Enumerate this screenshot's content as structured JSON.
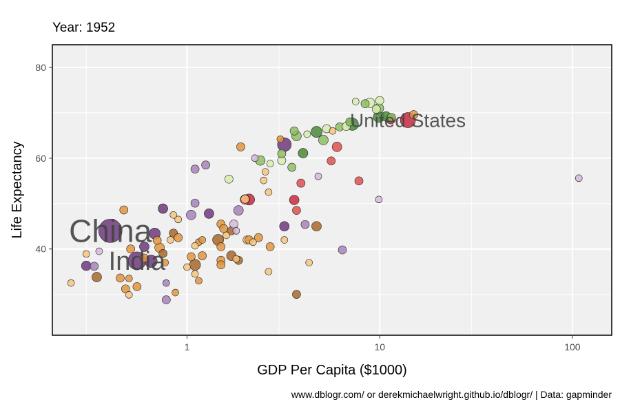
{
  "chart_data": {
    "type": "scatter",
    "title": "Year: 1952",
    "xlabel": "GDP Per Capita ($1000)",
    "ylabel": "Life Expectancy",
    "xscale": "log",
    "xlim": [
      0.2,
      160
    ],
    "ylim": [
      21,
      85
    ],
    "xticks": [
      {
        "value": 1,
        "label": "1"
      },
      {
        "value": 10,
        "label": "10"
      },
      {
        "value": 100,
        "label": "100"
      }
    ],
    "yticks": [
      {
        "value": 40,
        "label": "40"
      },
      {
        "value": 60,
        "label": "60"
      },
      {
        "value": 80,
        "label": "80"
      }
    ],
    "grid": true,
    "legend": "none",
    "caption": "www.dblogr.com/ or derekmichaelwright.github.io/dblogr/ | Data: gapminder",
    "colors": {
      "panel": "#f0f0f0",
      "grid": "#ffffff",
      "label": "#444444",
      "africa_light": "#f6c47e",
      "africa_mid": "#e0953f",
      "africa_dark": "#a8672a",
      "asia_light": "#d5b8dc",
      "asia_mid": "#a883b8",
      "asia_dark": "#6e3a7e",
      "americas_light": "#f08a6e",
      "americas_mid": "#e05050",
      "americas_dark": "#c72a40",
      "europe_light": "#d8ecb0",
      "europe_mid": "#8ebf62",
      "europe_dark": "#4a8a3a"
    },
    "labels": [
      {
        "text": "China",
        "x": 0.4,
        "y": 44.0,
        "size": 46
      },
      {
        "text": "India",
        "x": 0.55,
        "y": 37.4,
        "size": 38
      },
      {
        "text": "United States",
        "x": 14.0,
        "y": 68.4,
        "size": 28
      }
    ],
    "points": [
      {
        "x": 0.4,
        "y": 44.0,
        "r": 17,
        "c": "asia_dark"
      },
      {
        "x": 0.55,
        "y": 37.4,
        "r": 13,
        "c": "asia_dark"
      },
      {
        "x": 14.0,
        "y": 68.4,
        "r": 11,
        "c": "americas_dark"
      },
      {
        "x": 3.2,
        "y": 63.0,
        "r": 10,
        "c": "asia_dark"
      },
      {
        "x": 7.2,
        "y": 67.5,
        "r": 9,
        "c": "europe_dark"
      },
      {
        "x": 9.9,
        "y": 69.1,
        "r": 8,
        "c": "europe_dark"
      },
      {
        "x": 4.7,
        "y": 65.8,
        "r": 8,
        "c": "europe_dark"
      },
      {
        "x": 11.4,
        "y": 68.6,
        "r": 7,
        "c": "americas_dark"
      },
      {
        "x": 0.65,
        "y": 37.3,
        "r": 9,
        "c": "asia_dark"
      },
      {
        "x": 2.1,
        "y": 50.9,
        "r": 8,
        "c": "americas_dark"
      },
      {
        "x": 3.7,
        "y": 64.9,
        "r": 7,
        "c": "europe_mid"
      },
      {
        "x": 4.0,
        "y": 61.1,
        "r": 7,
        "c": "europe_dark"
      },
      {
        "x": 3.5,
        "y": 58.0,
        "r": 6,
        "c": "europe_mid"
      },
      {
        "x": 6.0,
        "y": 62.5,
        "r": 7,
        "c": "americas_mid"
      },
      {
        "x": 3.6,
        "y": 50.8,
        "r": 7,
        "c": "americas_dark"
      },
      {
        "x": 2.0,
        "y": 50.9,
        "r": 7,
        "c": "americas_mid"
      },
      {
        "x": 0.6,
        "y": 40.5,
        "r": 7,
        "c": "asia_dark"
      },
      {
        "x": 0.68,
        "y": 43.4,
        "r": 8,
        "c": "asia_dark"
      },
      {
        "x": 0.75,
        "y": 48.9,
        "r": 7,
        "c": "asia_dark"
      },
      {
        "x": 1.05,
        "y": 47.5,
        "r": 7,
        "c": "asia_mid"
      },
      {
        "x": 1.1,
        "y": 50.1,
        "r": 6,
        "c": "asia_mid"
      },
      {
        "x": 1.3,
        "y": 47.8,
        "r": 7,
        "c": "asia_dark"
      },
      {
        "x": 1.1,
        "y": 57.6,
        "r": 6,
        "c": "asia_mid"
      },
      {
        "x": 1.25,
        "y": 58.5,
        "r": 6,
        "c": "asia_mid"
      },
      {
        "x": 0.3,
        "y": 36.3,
        "r": 7,
        "c": "asia_dark"
      },
      {
        "x": 0.33,
        "y": 36.2,
        "r": 6,
        "c": "asia_mid"
      },
      {
        "x": 0.34,
        "y": 33.8,
        "r": 7,
        "c": "africa_dark"
      },
      {
        "x": 0.45,
        "y": 33.6,
        "r": 6,
        "c": "africa_mid"
      },
      {
        "x": 0.48,
        "y": 31.2,
        "r": 6,
        "c": "africa_mid"
      },
      {
        "x": 0.55,
        "y": 31.7,
        "r": 6,
        "c": "africa_mid"
      },
      {
        "x": 0.5,
        "y": 33.5,
        "r": 5,
        "c": "africa_mid"
      },
      {
        "x": 0.5,
        "y": 29.9,
        "r": 5,
        "c": "africa_light"
      },
      {
        "x": 0.25,
        "y": 32.5,
        "r": 5,
        "c": "africa_light"
      },
      {
        "x": 0.3,
        "y": 38.9,
        "r": 5,
        "c": "africa_light"
      },
      {
        "x": 0.35,
        "y": 39.5,
        "r": 5,
        "c": "asia_light"
      },
      {
        "x": 0.47,
        "y": 48.6,
        "r": 6,
        "c": "africa_mid"
      },
      {
        "x": 0.51,
        "y": 40.0,
        "r": 6,
        "c": "africa_mid"
      },
      {
        "x": 0.6,
        "y": 38.0,
        "r": 6,
        "c": "africa_mid"
      },
      {
        "x": 0.7,
        "y": 41.9,
        "r": 6,
        "c": "africa_mid"
      },
      {
        "x": 0.72,
        "y": 40.3,
        "r": 7,
        "c": "africa_mid"
      },
      {
        "x": 0.75,
        "y": 39.0,
        "r": 6,
        "c": "africa_dark"
      },
      {
        "x": 0.77,
        "y": 37.0,
        "r": 5,
        "c": "africa_mid"
      },
      {
        "x": 0.82,
        "y": 42.0,
        "r": 5,
        "c": "africa_light"
      },
      {
        "x": 0.85,
        "y": 43.5,
        "r": 6,
        "c": "africa_dark"
      },
      {
        "x": 0.9,
        "y": 42.5,
        "r": 6,
        "c": "africa_mid"
      },
      {
        "x": 0.9,
        "y": 46.5,
        "r": 5,
        "c": "africa_light"
      },
      {
        "x": 0.85,
        "y": 47.5,
        "r": 5,
        "c": "africa_light"
      },
      {
        "x": 0.78,
        "y": 32.5,
        "r": 5,
        "c": "asia_mid"
      },
      {
        "x": 0.78,
        "y": 28.8,
        "r": 6,
        "c": "asia_mid"
      },
      {
        "x": 0.87,
        "y": 30.4,
        "r": 5,
        "c": "africa_mid"
      },
      {
        "x": 1.05,
        "y": 38.3,
        "r": 6,
        "c": "africa_mid"
      },
      {
        "x": 1.15,
        "y": 41.5,
        "r": 5,
        "c": "africa_mid"
      },
      {
        "x": 1.2,
        "y": 38.5,
        "r": 6,
        "c": "africa_mid"
      },
      {
        "x": 1.1,
        "y": 36.5,
        "r": 8,
        "c": "africa_dark"
      },
      {
        "x": 1.15,
        "y": 33.0,
        "r": 5,
        "c": "africa_mid"
      },
      {
        "x": 1.1,
        "y": 34.5,
        "r": 5,
        "c": "africa_light"
      },
      {
        "x": 1.2,
        "y": 42.0,
        "r": 5,
        "c": "africa_mid"
      },
      {
        "x": 1.0,
        "y": 36.0,
        "r": 5,
        "c": "africa_light"
      },
      {
        "x": 1.1,
        "y": 40.7,
        "r": 5,
        "c": "africa_light"
      },
      {
        "x": 1.45,
        "y": 42.0,
        "r": 8,
        "c": "africa_dark"
      },
      {
        "x": 1.5,
        "y": 40.5,
        "r": 6,
        "c": "africa_mid"
      },
      {
        "x": 1.5,
        "y": 45.5,
        "r": 6,
        "c": "africa_mid"
      },
      {
        "x": 1.55,
        "y": 44.5,
        "r": 6,
        "c": "africa_mid"
      },
      {
        "x": 1.6,
        "y": 43.0,
        "r": 5,
        "c": "africa_light"
      },
      {
        "x": 1.5,
        "y": 37.5,
        "r": 6,
        "c": "africa_mid"
      },
      {
        "x": 1.5,
        "y": 36.5,
        "r": 6,
        "c": "africa_mid"
      },
      {
        "x": 1.7,
        "y": 38.5,
        "r": 7,
        "c": "africa_dark"
      },
      {
        "x": 1.7,
        "y": 44.0,
        "r": 6,
        "c": "africa_dark"
      },
      {
        "x": 1.85,
        "y": 37.5,
        "r": 6,
        "c": "africa_dark"
      },
      {
        "x": 1.8,
        "y": 37.8,
        "r": 5,
        "c": "africa_light"
      },
      {
        "x": 1.8,
        "y": 44.0,
        "r": 5,
        "c": "asia_light"
      },
      {
        "x": 1.75,
        "y": 45.5,
        "r": 6,
        "c": "asia_light"
      },
      {
        "x": 1.85,
        "y": 48.5,
        "r": 7,
        "c": "asia_mid"
      },
      {
        "x": 1.9,
        "y": 62.5,
        "r": 6,
        "c": "africa_mid"
      },
      {
        "x": 1.65,
        "y": 55.4,
        "r": 6,
        "c": "europe_light"
      },
      {
        "x": 2.0,
        "y": 51.0,
        "r": 6,
        "c": "africa_light"
      },
      {
        "x": 2.05,
        "y": 42.0,
        "r": 6,
        "c": "africa_light"
      },
      {
        "x": 2.1,
        "y": 42.0,
        "r": 6,
        "c": "africa_mid"
      },
      {
        "x": 2.2,
        "y": 41.5,
        "r": 5,
        "c": "africa_light"
      },
      {
        "x": 2.35,
        "y": 42.5,
        "r": 6,
        "c": "africa_mid"
      },
      {
        "x": 2.25,
        "y": 60.0,
        "r": 5,
        "c": "asia_light"
      },
      {
        "x": 2.4,
        "y": 59.5,
        "r": 7,
        "c": "europe_mid"
      },
      {
        "x": 2.5,
        "y": 55.1,
        "r": 5,
        "c": "africa_light"
      },
      {
        "x": 2.55,
        "y": 57.0,
        "r": 5,
        "c": "africa_light"
      },
      {
        "x": 2.7,
        "y": 58.8,
        "r": 5,
        "c": "europe_light"
      },
      {
        "x": 2.65,
        "y": 52.5,
        "r": 5,
        "c": "africa_light"
      },
      {
        "x": 2.65,
        "y": 35.0,
        "r": 5,
        "c": "africa_light"
      },
      {
        "x": 2.7,
        "y": 40.5,
        "r": 6,
        "c": "africa_mid"
      },
      {
        "x": 3.1,
        "y": 59.5,
        "r": 6,
        "c": "europe_light"
      },
      {
        "x": 3.1,
        "y": 61.0,
        "r": 6,
        "c": "europe_mid"
      },
      {
        "x": 3.05,
        "y": 64.2,
        "r": 5,
        "c": "africa_mid"
      },
      {
        "x": 3.2,
        "y": 42.0,
        "r": 5,
        "c": "africa_light"
      },
      {
        "x": 3.2,
        "y": 45.0,
        "r": 7,
        "c": "asia_dark"
      },
      {
        "x": 3.7,
        "y": 48.5,
        "r": 6,
        "c": "americas_mid"
      },
      {
        "x": 3.9,
        "y": 54.5,
        "r": 6,
        "c": "americas_mid"
      },
      {
        "x": 3.7,
        "y": 30.0,
        "r": 6,
        "c": "africa_dark"
      },
      {
        "x": 3.6,
        "y": 66.0,
        "r": 6,
        "c": "europe_mid"
      },
      {
        "x": 4.1,
        "y": 45.4,
        "r": 6,
        "c": "asia_mid"
      },
      {
        "x": 4.3,
        "y": 37.0,
        "r": 5,
        "c": "africa_light"
      },
      {
        "x": 4.2,
        "y": 65.3,
        "r": 5,
        "c": "europe_light"
      },
      {
        "x": 4.7,
        "y": 45.0,
        "r": 7,
        "c": "africa_dark"
      },
      {
        "x": 4.8,
        "y": 56.0,
        "r": 5,
        "c": "asia_light"
      },
      {
        "x": 5.1,
        "y": 64.0,
        "r": 7,
        "c": "europe_mid"
      },
      {
        "x": 5.3,
        "y": 66.5,
        "r": 6,
        "c": "europe_light"
      },
      {
        "x": 5.6,
        "y": 59.4,
        "r": 6,
        "c": "americas_mid"
      },
      {
        "x": 5.7,
        "y": 66.0,
        "r": 5,
        "c": "africa_light"
      },
      {
        "x": 6.2,
        "y": 66.9,
        "r": 6,
        "c": "europe_mid"
      },
      {
        "x": 6.4,
        "y": 39.8,
        "r": 6,
        "c": "asia_mid"
      },
      {
        "x": 6.7,
        "y": 67.0,
        "r": 6,
        "c": "europe_light"
      },
      {
        "x": 7.0,
        "y": 68.0,
        "r": 6,
        "c": "europe_mid"
      },
      {
        "x": 7.5,
        "y": 72.5,
        "r": 5,
        "c": "europe_light"
      },
      {
        "x": 7.8,
        "y": 55.0,
        "r": 6,
        "c": "americas_mid"
      },
      {
        "x": 8.4,
        "y": 72.0,
        "r": 6,
        "c": "europe_mid"
      },
      {
        "x": 8.9,
        "y": 72.2,
        "r": 7,
        "c": "europe_light"
      },
      {
        "x": 9.6,
        "y": 70.8,
        "r": 6,
        "c": "europe_light"
      },
      {
        "x": 9.9,
        "y": 71.0,
        "r": 7,
        "c": "europe_mid"
      },
      {
        "x": 10.0,
        "y": 72.7,
        "r": 6,
        "c": "europe_light"
      },
      {
        "x": 9.9,
        "y": 50.9,
        "r": 5,
        "c": "asia_light"
      },
      {
        "x": 10.8,
        "y": 69.2,
        "r": 7,
        "c": "europe_dark"
      },
      {
        "x": 11.5,
        "y": 69.0,
        "r": 6,
        "c": "europe_mid"
      },
      {
        "x": 15.0,
        "y": 69.6,
        "r": 6,
        "c": "africa_mid"
      },
      {
        "x": 108.0,
        "y": 55.6,
        "r": 5,
        "c": "asia_light"
      }
    ]
  }
}
